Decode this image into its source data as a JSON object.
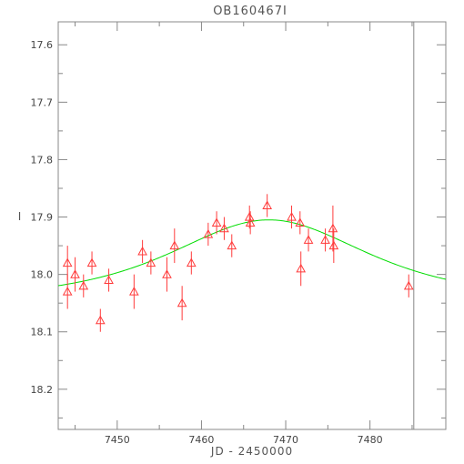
{
  "chart_data": {
    "type": "scatter",
    "title": "OB160467I",
    "xlabel": "JD - 2450000",
    "ylabel": "I",
    "xlim": [
      7443,
      7489
    ],
    "ylim": [
      18.27,
      17.56
    ],
    "y_inverted": true,
    "grid": false,
    "x_ticks": [
      7450,
      7460,
      7470,
      7480
    ],
    "y_ticks": [
      17.6,
      17.7,
      17.8,
      17.9,
      18.0,
      18.1,
      18.2
    ],
    "x_tick_labels": [
      "7450",
      "7460",
      "7470",
      "7480"
    ],
    "y_tick_labels": [
      "17.6",
      "17.7",
      "17.8",
      "17.9",
      "18.0",
      "18.1",
      "18.2"
    ],
    "vertical_line_x": 7485.2,
    "model_curve": {
      "color": "#00dd00",
      "t0": 7468.0,
      "peak_mag": 17.905,
      "baseline_mag": 18.045,
      "tE": 11.0
    },
    "series": [
      {
        "marker": "triangle-open",
        "color": "#ff3b3b",
        "points": [
          {
            "x": 7444.1,
            "y": 17.98,
            "err": 0.03
          },
          {
            "x": 7444.1,
            "y": 18.03,
            "err": 0.03
          },
          {
            "x": 7445.0,
            "y": 18.0,
            "err": 0.03
          },
          {
            "x": 7446.0,
            "y": 18.02,
            "err": 0.02
          },
          {
            "x": 7447.0,
            "y": 17.98,
            "err": 0.02
          },
          {
            "x": 7448.0,
            "y": 18.08,
            "err": 0.02
          },
          {
            "x": 7449.0,
            "y": 18.01,
            "err": 0.02
          },
          {
            "x": 7452.0,
            "y": 18.03,
            "err": 0.03
          },
          {
            "x": 7453.0,
            "y": 17.96,
            "err": 0.02
          },
          {
            "x": 7454.0,
            "y": 17.98,
            "err": 0.02
          },
          {
            "x": 7455.9,
            "y": 18.0,
            "err": 0.03
          },
          {
            "x": 7456.8,
            "y": 17.95,
            "err": 0.03
          },
          {
            "x": 7457.7,
            "y": 18.05,
            "err": 0.03
          },
          {
            "x": 7458.8,
            "y": 17.98,
            "err": 0.02
          },
          {
            "x": 7460.8,
            "y": 17.93,
            "err": 0.02
          },
          {
            "x": 7461.8,
            "y": 17.91,
            "err": 0.02
          },
          {
            "x": 7462.7,
            "y": 17.92,
            "err": 0.02
          },
          {
            "x": 7463.6,
            "y": 17.95,
            "err": 0.02
          },
          {
            "x": 7465.7,
            "y": 17.9,
            "err": 0.02
          },
          {
            "x": 7465.8,
            "y": 17.91,
            "err": 0.02
          },
          {
            "x": 7467.8,
            "y": 17.88,
            "err": 0.02
          },
          {
            "x": 7470.7,
            "y": 17.9,
            "err": 0.02
          },
          {
            "x": 7471.7,
            "y": 17.91,
            "err": 0.02
          },
          {
            "x": 7471.8,
            "y": 17.99,
            "err": 0.03
          },
          {
            "x": 7472.7,
            "y": 17.94,
            "err": 0.02
          },
          {
            "x": 7474.7,
            "y": 17.94,
            "err": 0.02
          },
          {
            "x": 7475.6,
            "y": 17.92,
            "err": 0.04
          },
          {
            "x": 7475.7,
            "y": 17.95,
            "err": 0.03
          },
          {
            "x": 7484.6,
            "y": 18.02,
            "err": 0.02
          }
        ]
      }
    ]
  }
}
